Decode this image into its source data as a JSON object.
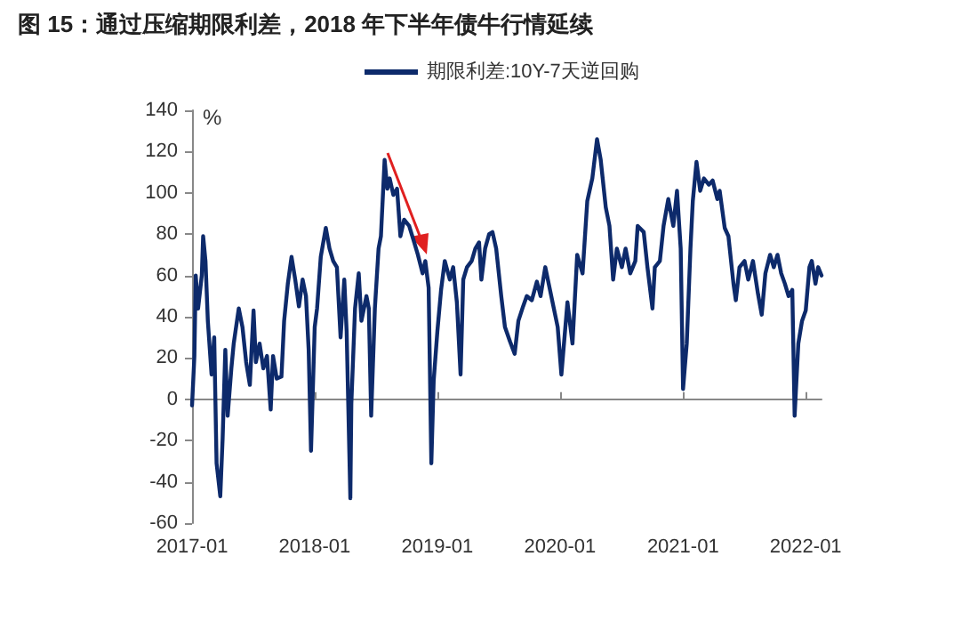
{
  "chart_data": {
    "type": "line",
    "title": "图 15：通过压缩期限利差，2018 年下半年债牛行情延续",
    "ylabel": "%",
    "series": [
      {
        "name": "期限利差:10Y-7天逆回购",
        "color": "#0d2a6b",
        "x": [
          "2017-01-01",
          "2017-01-08",
          "2017-01-12",
          "2017-01-19",
          "2017-01-30",
          "2017-02-03",
          "2017-02-10",
          "2017-02-17",
          "2017-02-28",
          "2017-03-08",
          "2017-03-15",
          "2017-03-26",
          "2017-04-02",
          "2017-04-10",
          "2017-04-17",
          "2017-04-28",
          "2017-05-05",
          "2017-05-20",
          "2017-05-31",
          "2017-06-11",
          "2017-06-22",
          "2017-07-03",
          "2017-07-10",
          "2017-07-21",
          "2017-08-01",
          "2017-08-12",
          "2017-08-23",
          "2017-08-30",
          "2017-09-10",
          "2017-09-24",
          "2017-10-02",
          "2017-10-13",
          "2017-10-24",
          "2017-11-04",
          "2017-11-15",
          "2017-11-26",
          "2017-12-06",
          "2017-12-14",
          "2017-12-21",
          "2018-01-01",
          "2018-01-08",
          "2018-01-19",
          "2018-02-03",
          "2018-02-14",
          "2018-02-25",
          "2018-03-08",
          "2018-03-19",
          "2018-03-30",
          "2018-04-06",
          "2018-04-17",
          "2018-04-20",
          "2018-05-01",
          "2018-05-12",
          "2018-05-20",
          "2018-06-04",
          "2018-06-11",
          "2018-06-18",
          "2018-06-29",
          "2018-07-10",
          "2018-07-17",
          "2018-07-28",
          "2018-08-05",
          "2018-08-12",
          "2018-08-23",
          "2018-09-03",
          "2018-09-13",
          "2018-09-24",
          "2018-10-09",
          "2018-10-24",
          "2018-11-04",
          "2018-11-18",
          "2018-11-26",
          "2018-12-06",
          "2018-12-14",
          "2018-12-21",
          "2019-01-01",
          "2019-01-12",
          "2019-01-23",
          "2019-02-07",
          "2019-02-17",
          "2019-02-28",
          "2019-03-11",
          "2019-03-19",
          "2019-03-30",
          "2019-04-13",
          "2019-04-24",
          "2019-05-05",
          "2019-05-12",
          "2019-05-23",
          "2019-06-04",
          "2019-06-14",
          "2019-06-25",
          "2019-07-10",
          "2019-07-21",
          "2019-08-05",
          "2019-08-19",
          "2019-08-30",
          "2019-09-13",
          "2019-09-24",
          "2019-10-09",
          "2019-10-24",
          "2019-11-04",
          "2019-11-18",
          "2019-12-25",
          "2020-01-05",
          "2020-01-23",
          "2020-02-07",
          "2020-02-21",
          "2020-03-08",
          "2020-03-22",
          "2020-04-06",
          "2020-04-20",
          "2020-05-01",
          "2020-05-16",
          "2020-05-27",
          "2020-06-07",
          "2020-06-18",
          "2020-07-03",
          "2020-07-14",
          "2020-07-28",
          "2020-08-12",
          "2020-08-19",
          "2020-09-06",
          "2020-09-17",
          "2020-10-02",
          "2020-10-09",
          "2020-10-24",
          "2020-11-04",
          "2020-11-18",
          "2020-12-03",
          "2020-12-14",
          "2020-12-25",
          "2021-01-01",
          "2021-01-12",
          "2021-01-23",
          "2021-01-30",
          "2021-02-10",
          "2021-02-21",
          "2021-03-04",
          "2021-03-19",
          "2021-03-30",
          "2021-04-13",
          "2021-04-20",
          "2021-05-05",
          "2021-05-16",
          "2021-05-31",
          "2021-06-07",
          "2021-06-18",
          "2021-07-03",
          "2021-07-14",
          "2021-07-28",
          "2021-08-12",
          "2021-08-23",
          "2021-09-03",
          "2021-09-17",
          "2021-09-28",
          "2021-10-09",
          "2021-10-20",
          "2021-10-31",
          "2021-11-11",
          "2021-11-22",
          "2021-11-29",
          "2021-12-10",
          "2021-12-21",
          "2022-01-01",
          "2022-01-12",
          "2022-01-19",
          "2022-01-30",
          "2022-02-07",
          "2022-02-17"
        ],
        "values": [
          -3,
          21,
          60,
          44,
          60,
          79,
          67,
          38,
          12,
          30,
          -31,
          -47,
          -19,
          24,
          -8,
          15,
          27,
          44,
          35,
          18,
          7,
          43,
          18,
          27,
          15,
          21,
          -5,
          21,
          10,
          11,
          38,
          56,
          69,
          58,
          45,
          58,
          50,
          24,
          -25,
          35,
          44,
          69,
          83,
          73,
          67,
          64,
          30,
          58,
          33,
          -48,
          -2,
          44,
          61,
          38,
          50,
          44,
          -8,
          44,
          73,
          79,
          116,
          102,
          107,
          99,
          102,
          79,
          87,
          84,
          76,
          70,
          61,
          67,
          54,
          -31,
          9,
          33,
          53,
          67,
          58,
          64,
          47,
          12,
          58,
          64,
          67,
          73,
          76,
          58,
          73,
          80,
          81,
          73,
          50,
          35,
          28,
          22,
          38,
          45,
          50,
          48,
          57,
          50,
          64,
          35,
          12,
          47,
          27,
          70,
          61,
          96,
          107,
          126,
          116,
          93,
          84,
          58,
          73,
          64,
          73,
          61,
          67,
          84,
          81,
          64,
          44,
          64,
          67,
          84,
          97,
          84,
          101,
          73,
          5,
          27,
          73,
          96,
          115,
          101,
          107,
          104,
          106,
          97,
          101,
          83,
          79,
          56,
          48,
          64,
          67,
          58,
          67,
          51,
          41,
          61,
          70,
          64,
          70,
          61,
          56,
          50,
          53,
          -8,
          27,
          38,
          43,
          64,
          67,
          56,
          64,
          60
        ]
      }
    ],
    "xlim": [
      "2017-01-01",
      "2022-02-17"
    ],
    "xticks": [
      "2017-01",
      "2018-01",
      "2019-01",
      "2020-01",
      "2021-01",
      "2022-01"
    ],
    "ylim": [
      -60,
      140
    ],
    "yticks": [
      -60,
      -40,
      -20,
      0,
      20,
      40,
      60,
      80,
      100,
      120,
      140
    ],
    "legend": "top",
    "marker": "none",
    "line_style": "solid"
  }
}
